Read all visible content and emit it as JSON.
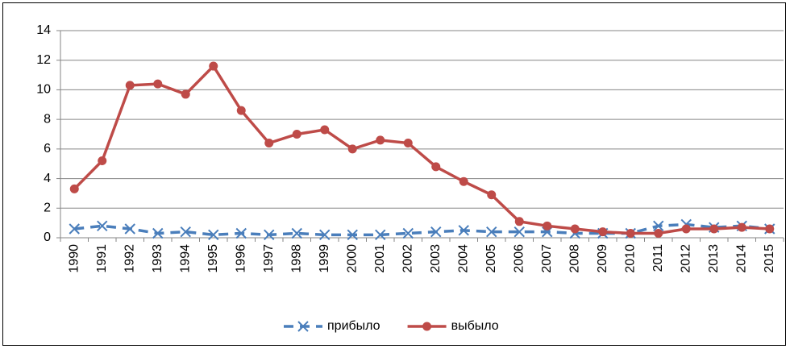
{
  "chart_data": {
    "type": "line",
    "categories": [
      "1990",
      "1991",
      "1992",
      "1993",
      "1994",
      "1995",
      "1996",
      "1997",
      "1998",
      "1999",
      "2000",
      "2001",
      "2002",
      "2003",
      "2004",
      "2005",
      "2006",
      "2007",
      "2008",
      "2009",
      "2010",
      "2011",
      "2012",
      "2013",
      "2014",
      "2015"
    ],
    "series": [
      {
        "name": "прибыло",
        "color": "#4a7ebb",
        "marker": "x",
        "dashed": true,
        "values": [
          0.6,
          0.8,
          0.6,
          0.3,
          0.4,
          0.2,
          0.3,
          0.2,
          0.3,
          0.2,
          0.2,
          0.2,
          0.3,
          0.4,
          0.5,
          0.4,
          0.4,
          0.4,
          0.3,
          0.3,
          0.3,
          0.8,
          0.9,
          0.7,
          0.8,
          0.6
        ]
      },
      {
        "name": "выбыло",
        "color": "#be4b48",
        "marker": "circle",
        "dashed": false,
        "values": [
          3.3,
          5.2,
          10.3,
          10.4,
          9.7,
          11.6,
          8.6,
          6.4,
          7.0,
          7.3,
          6.0,
          6.6,
          6.4,
          4.8,
          3.8,
          2.9,
          1.1,
          0.8,
          0.6,
          0.4,
          0.3,
          0.3,
          0.6,
          0.6,
          0.7,
          0.6
        ]
      }
    ],
    "ylim": [
      0,
      14
    ],
    "yticks": [
      0,
      2,
      4,
      6,
      8,
      10,
      12,
      14
    ],
    "grid": true,
    "legend": "bottom"
  }
}
